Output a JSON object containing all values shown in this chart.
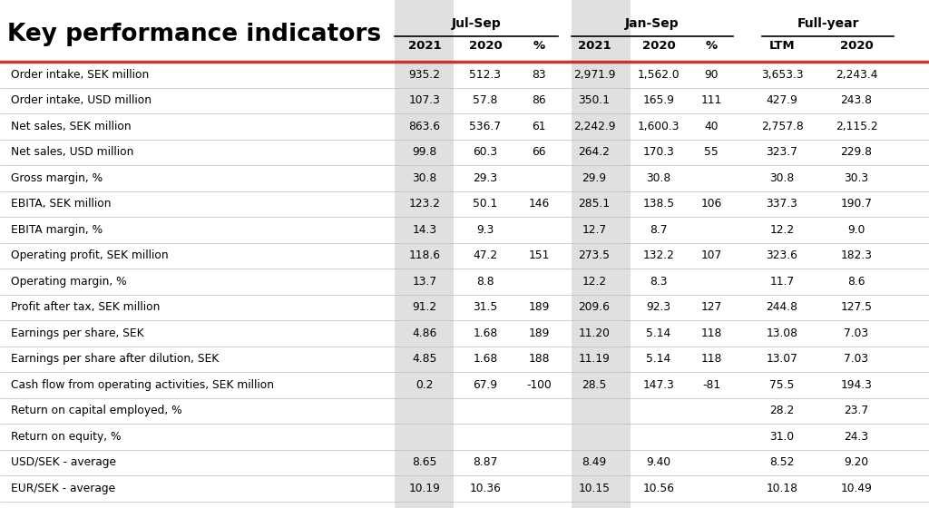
{
  "title": "Key performance indicators",
  "rows": [
    [
      "Order intake, SEK million",
      "935.2",
      "512.3",
      "83",
      "2,971.9",
      "1,562.0",
      "90",
      "3,653.3",
      "2,243.4"
    ],
    [
      "Order intake, USD million",
      "107.3",
      "57.8",
      "86",
      "350.1",
      "165.9",
      "111",
      "427.9",
      "243.8"
    ],
    [
      "Net sales, SEK million",
      "863.6",
      "536.7",
      "61",
      "2,242.9",
      "1,600.3",
      "40",
      "2,757.8",
      "2,115.2"
    ],
    [
      "Net sales, USD million",
      "99.8",
      "60.3",
      "66",
      "264.2",
      "170.3",
      "55",
      "323.7",
      "229.8"
    ],
    [
      "Gross margin, %",
      "30.8",
      "29.3",
      "",
      "29.9",
      "30.8",
      "",
      "30.8",
      "30.3"
    ],
    [
      "EBITA, SEK million",
      "123.2",
      "50.1",
      "146",
      "285.1",
      "138.5",
      "106",
      "337.3",
      "190.7"
    ],
    [
      "EBITA margin, %",
      "14.3",
      "9.3",
      "",
      "12.7",
      "8.7",
      "",
      "12.2",
      "9.0"
    ],
    [
      "Operating profit, SEK million",
      "118.6",
      "47.2",
      "151",
      "273.5",
      "132.2",
      "107",
      "323.6",
      "182.3"
    ],
    [
      "Operating margin, %",
      "13.7",
      "8.8",
      "",
      "12.2",
      "8.3",
      "",
      "11.7",
      "8.6"
    ],
    [
      "Profit after tax, SEK million",
      "91.2",
      "31.5",
      "189",
      "209.6",
      "92.3",
      "127",
      "244.8",
      "127.5"
    ],
    [
      "Earnings per share, SEK",
      "4.86",
      "1.68",
      "189",
      "11.20",
      "5.14",
      "118",
      "13.08",
      "7.03"
    ],
    [
      "Earnings per share after dilution, SEK",
      "4.85",
      "1.68",
      "188",
      "11.19",
      "5.14",
      "118",
      "13.07",
      "7.03"
    ],
    [
      "Cash flow from operating activities, SEK million",
      "0.2",
      "67.9",
      "-100",
      "28.5",
      "147.3",
      "-81",
      "75.5",
      "194.3"
    ],
    [
      "Return on capital employed, %",
      "",
      "",
      "",
      "",
      "",
      "",
      "28.2",
      "23.7"
    ],
    [
      "Return on equity, %",
      "",
      "",
      "",
      "",
      "",
      "",
      "31.0",
      "24.3"
    ],
    [
      "USD/SEK - average",
      "8.65",
      "8.87",
      "",
      "8.49",
      "9.40",
      "",
      "8.52",
      "9.20"
    ],
    [
      "EUR/SEK - average",
      "10.19",
      "10.36",
      "",
      "10.15",
      "10.56",
      "",
      "10.18",
      "10.49"
    ]
  ],
  "bg_color": "#ffffff",
  "red_line_color": "#cc3333",
  "black_line_color": "#000000",
  "shade_color": "#e0e0e0",
  "text_color": "#000000",
  "group_labels": [
    "Jul-Sep",
    "Jan-Sep",
    "Full-year"
  ],
  "sub_headers": [
    "2021",
    "2020",
    "%",
    "2021",
    "2020",
    "%",
    "LTM",
    "2020"
  ]
}
